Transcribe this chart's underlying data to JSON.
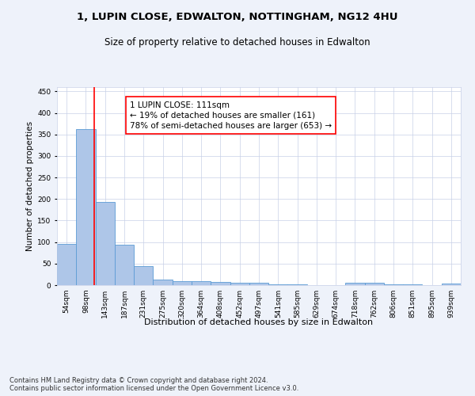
{
  "title1": "1, LUPIN CLOSE, EDWALTON, NOTTINGHAM, NG12 4HU",
  "title2": "Size of property relative to detached houses in Edwalton",
  "xlabel": "Distribution of detached houses by size in Edwalton",
  "ylabel": "Number of detached properties",
  "categories": [
    "54sqm",
    "98sqm",
    "143sqm",
    "187sqm",
    "231sqm",
    "275sqm",
    "320sqm",
    "364sqm",
    "408sqm",
    "452sqm",
    "497sqm",
    "541sqm",
    "585sqm",
    "629sqm",
    "674sqm",
    "718sqm",
    "762sqm",
    "806sqm",
    "851sqm",
    "895sqm",
    "939sqm"
  ],
  "values": [
    95,
    362,
    193,
    93,
    45,
    13,
    10,
    10,
    8,
    6,
    5,
    2,
    2,
    0,
    0,
    5,
    5,
    2,
    2,
    0,
    3
  ],
  "bar_color": "#aec6e8",
  "bar_edge_color": "#5b9bd5",
  "annotation_text": "1 LUPIN CLOSE: 111sqm\n← 19% of detached houses are smaller (161)\n78% of semi-detached houses are larger (653) →",
  "annotation_box_color": "white",
  "annotation_box_edge_color": "red",
  "vline_color": "red",
  "vline_x": 1.45,
  "ylim": [
    0,
    460
  ],
  "yticks": [
    0,
    50,
    100,
    150,
    200,
    250,
    300,
    350,
    400,
    450
  ],
  "footer": "Contains HM Land Registry data © Crown copyright and database right 2024.\nContains public sector information licensed under the Open Government Licence v3.0.",
  "bg_color": "#eef2fa",
  "plot_bg_color": "white",
  "grid_color": "#c8d0e8",
  "title1_fontsize": 9.5,
  "title2_fontsize": 8.5,
  "xlabel_fontsize": 8,
  "ylabel_fontsize": 7.5,
  "tick_fontsize": 6.5,
  "annotation_fontsize": 7.5,
  "footer_fontsize": 6
}
